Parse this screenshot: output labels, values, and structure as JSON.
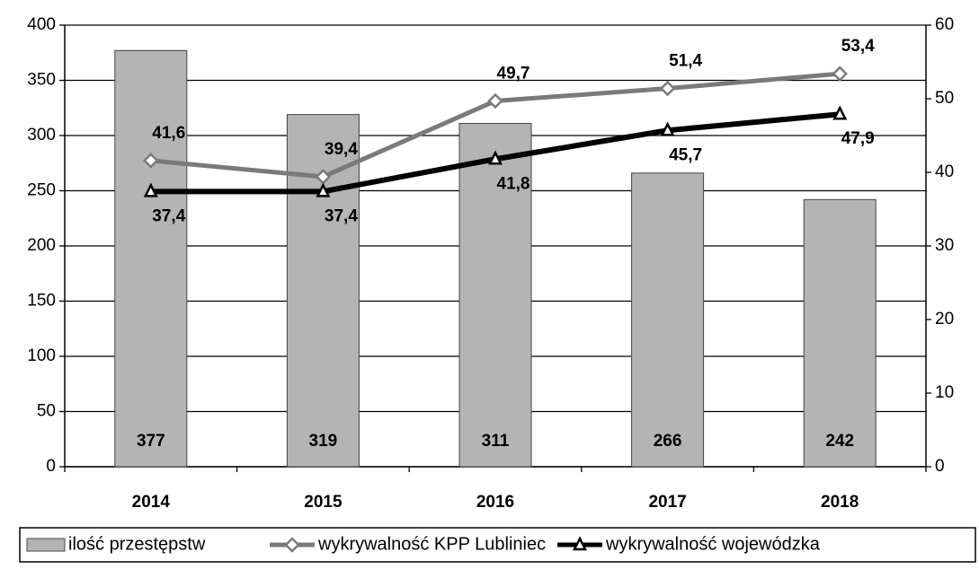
{
  "chart_data": {
    "type": "bar",
    "categories": [
      "2014",
      "2015",
      "2016",
      "2017",
      "2018"
    ],
    "series": [
      {
        "name": "ilość przestępstw",
        "type": "bar",
        "color": "#b4b4b4",
        "values": [
          377,
          319,
          311,
          266,
          242
        ]
      },
      {
        "name": "wykrywalność KPP Lubliniec",
        "type": "line",
        "axis": "y2",
        "marker": "diamond",
        "color": "#7a7a7a",
        "values": [
          41.6,
          39.4,
          49.7,
          51.4,
          53.4
        ],
        "value_labels": [
          "41,6",
          "39,4",
          "49,7",
          "51,4",
          "53,4"
        ]
      },
      {
        "name": "wykrywalność wojewódzka",
        "type": "line",
        "axis": "y2",
        "marker": "triangle",
        "color": "#000000",
        "values": [
          37.4,
          37.4,
          41.8,
          45.7,
          47.9
        ],
        "value_labels": [
          "37,4",
          "37,4",
          "41,8",
          "45,7",
          "47,9"
        ]
      }
    ],
    "ylim": [
      0,
      400
    ],
    "yticks": [
      0,
      50,
      100,
      150,
      200,
      250,
      300,
      350,
      400
    ],
    "y2lim": [
      0,
      60
    ],
    "y2ticks": [
      0,
      10,
      20,
      30,
      40,
      50,
      60
    ],
    "grid": true,
    "legend": "bottom"
  }
}
